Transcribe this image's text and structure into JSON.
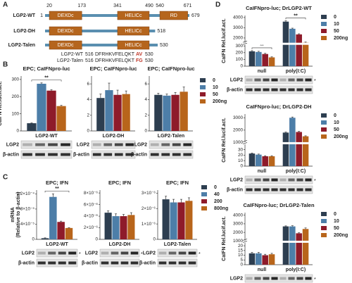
{
  "panels": [
    "A",
    "B",
    "C",
    "D"
  ],
  "domain_diagram": {
    "constructs": [
      {
        "name": "LGP2-WT",
        "start": 1,
        "end": 679,
        "domains": [
          {
            "label": "DEXDc",
            "from": 20,
            "to": 173
          },
          {
            "label": "HELICc",
            "from": 341,
            "to": 490
          },
          {
            "label": "RD",
            "from": 540,
            "to": 671
          }
        ]
      },
      {
        "name": "LGP2-DH",
        "end": 518,
        "domains": [
          {
            "label": "DEXDc",
            "from": 20,
            "to": 173
          },
          {
            "label": "HELICc",
            "from": 341,
            "to": 490
          }
        ]
      },
      {
        "name": "LGP2-Talen",
        "end": 530,
        "domains": [
          {
            "label": "DEXDc",
            "from": 20,
            "to": 173
          },
          {
            "label": "HELICc",
            "from": 341,
            "to": 490
          }
        ]
      }
    ],
    "sequences": [
      {
        "name": "LGP2-WT",
        "start": 516,
        "body": "DFRHKVFELQKT",
        "tail": "AV",
        "end": 530
      },
      {
        "name": "LGP2-Talen",
        "start": 516,
        "body": "DFRHKVFELQKT",
        "tail": "FG",
        "end": 530
      }
    ]
  },
  "chart_data": [
    {
      "type": "bar",
      "title": "EPC; CaIFNpro-luc",
      "y_label": [
        "CaIFN Rel.lucif.act."
      ],
      "categories": [
        "LGP2-WT"
      ],
      "ylim": [
        0,
        320
      ],
      "yticks": [
        0,
        100,
        200,
        300
      ],
      "series": [
        {
          "color": "#2d3e50",
          "values": [
            45
          ],
          "errors": [
            2
          ]
        },
        {
          "color": "#4d7ea8",
          "values": [
            275
          ],
          "errors": [
            5
          ]
        },
        {
          "color": "#8e1b2a",
          "values": [
            235
          ],
          "errors": [
            5
          ]
        },
        {
          "color": "#b8651b",
          "values": [
            145
          ],
          "errors": [
            4
          ]
        }
      ],
      "annotations": [
        "**"
      ],
      "blot_labels": [
        "LGP2",
        "β-actin"
      ]
    },
    {
      "type": "bar",
      "title": "EPC; CaIFNpro-luc",
      "categories": [
        "LGP2-DH"
      ],
      "ylim": [
        0,
        7
      ],
      "yticks": [
        0,
        2,
        4,
        6
      ],
      "series": [
        {
          "color": "#2d3e50",
          "values": [
            4.2
          ],
          "errors": [
            0.5
          ]
        },
        {
          "color": "#4d7ea8",
          "values": [
            5.2
          ],
          "errors": [
            0.9
          ]
        },
        {
          "color": "#8e1b2a",
          "values": [
            4.6
          ],
          "errors": [
            0.6
          ]
        },
        {
          "color": "#b8651b",
          "values": [
            4.7
          ],
          "errors": [
            0.4
          ]
        }
      ],
      "blot_labels": [
        "LGP2",
        "β-actin"
      ]
    },
    {
      "type": "bar",
      "title": "EPC; CaIFNpro-luc",
      "categories": [
        "LGP2-Talen"
      ],
      "ylim": [
        0,
        7
      ],
      "yticks": [
        0,
        2,
        4,
        6
      ],
      "series": [
        {
          "name": "0",
          "color": "#2d3e50",
          "values": [
            4.6
          ],
          "errors": [
            0.2
          ]
        },
        {
          "name": "10",
          "color": "#4d7ea8",
          "values": [
            4.5
          ],
          "errors": [
            0.2
          ]
        },
        {
          "name": "50",
          "color": "#8e1b2a",
          "values": [
            4.6
          ],
          "errors": [
            0.3
          ]
        },
        {
          "name": "200ng",
          "color": "#b8651b",
          "values": [
            5.0
          ],
          "errors": [
            0.6
          ]
        }
      ],
      "blot_labels": [
        "LGP2",
        "β-actin"
      ]
    },
    {
      "type": "bar",
      "title": "EPC; IFN",
      "y_label": [
        "mRNA",
        "(Relative to β-actin)"
      ],
      "categories": [
        "LGP2-WT"
      ],
      "ylim": [
        0,
        0.00013
      ],
      "yticks": [
        0,
        {
          "value": 4e-05,
          "label": "4×10⁻⁵"
        },
        {
          "value": 8e-05,
          "label": "8×10⁻⁵"
        },
        {
          "value": 0.00012,
          "label": "1.2×10⁻⁴"
        }
      ],
      "series": [
        {
          "color": "#2d3e50",
          "values": [
            3e-06
          ],
          "errors": [
            1e-06
          ]
        },
        {
          "color": "#4d7ea8",
          "values": [
            0.000112
          ],
          "errors": [
            8e-06
          ]
        },
        {
          "color": "#8e1b2a",
          "values": [
            4.6e-05
          ],
          "errors": [
            2e-06
          ]
        },
        {
          "color": "#b8651b",
          "values": [
            3e-05
          ],
          "errors": [
            1e-06
          ]
        }
      ],
      "annotations": [
        "**"
      ],
      "blot_labels": [
        "LGP2",
        "β-actin"
      ],
      "blot_star": "*"
    },
    {
      "type": "bar",
      "title": "EPC; IFN",
      "categories": [
        "LGP2-DH"
      ],
      "ylim": [
        0,
        8.5e-06
      ],
      "yticks": [
        0,
        {
          "value": 2e-06,
          "label": "2×10⁻⁶"
        },
        {
          "value": 4e-06,
          "label": "4×10⁻⁶"
        },
        {
          "value": 6e-06,
          "label": "6×10⁻⁶"
        },
        {
          "value": 8e-06,
          "label": "8×10⁻⁶"
        }
      ],
      "series": [
        {
          "color": "#2d3e50",
          "values": [
            4.6e-06
          ],
          "errors": [
            3e-07
          ]
        },
        {
          "color": "#4d7ea8",
          "values": [
            4e-06
          ],
          "errors": [
            4e-07
          ]
        },
        {
          "color": "#8e1b2a",
          "values": [
            4e-06
          ],
          "errors": [
            3e-07
          ]
        },
        {
          "color": "#b8651b",
          "values": [
            4.2e-06
          ],
          "errors": [
            4e-07
          ]
        }
      ],
      "blot_labels": [
        "LGP2",
        "β-actin"
      ],
      "blot_star": "*"
    },
    {
      "type": "bar",
      "title": "EPC; IFN",
      "categories": [
        "LGP2-Talen"
      ],
      "ylim": [
        0,
        3.2e-06
      ],
      "yticks": [
        0,
        {
          "value": 1e-06,
          "label": "1×10⁻⁶"
        },
        {
          "value": 2e-06,
          "label": "2×10⁻⁶"
        },
        {
          "value": 3e-06,
          "label": "3×10⁻⁶"
        }
      ],
      "series": [
        {
          "name": "0",
          "color": "#2d3e50",
          "values": [
            2.6e-06
          ],
          "errors": [
            2e-07
          ]
        },
        {
          "name": "40",
          "color": "#4d7ea8",
          "values": [
            2.4e-06
          ],
          "errors": [
            2e-07
          ]
        },
        {
          "name": "200",
          "color": "#8e1b2a",
          "values": [
            2.4e-06
          ],
          "errors": [
            2e-07
          ]
        },
        {
          "name": "800ng",
          "color": "#b8651b",
          "values": [
            2.5e-06
          ],
          "errors": [
            2e-07
          ]
        }
      ],
      "blot_labels": [
        "LGP2",
        "β-actin"
      ],
      "blot_star": "*"
    },
    {
      "type": "bar",
      "title": "CaIFNpro-luc; DrLGP2-WT",
      "y_label": [
        "CaIFN Rel.lucif.act."
      ],
      "categories": [
        "null",
        "poly(I:C)"
      ],
      "ylim": [
        0,
        4200
      ],
      "ybreak": [
        300,
        1500
      ],
      "yticks": [
        0,
        100,
        200,
        300,
        2000,
        3000,
        4000
      ],
      "series": [
        {
          "name": "0",
          "color": "#2d3e50",
          "values": [
            220,
            3600
          ],
          "errors": [
            10,
            80
          ]
        },
        {
          "name": "10",
          "color": "#4d7ea8",
          "values": [
            210,
            2900
          ],
          "errors": [
            10,
            60
          ]
        },
        {
          "name": "50",
          "color": "#8e1b2a",
          "values": [
            180,
            2350
          ],
          "errors": [
            10,
            60
          ]
        },
        {
          "name": "200ng",
          "color": "#b8651b",
          "values": [
            130,
            1550
          ],
          "errors": [
            8,
            50
          ]
        }
      ],
      "annotations": [
        "**",
        "**"
      ],
      "blot_labels": [
        "LGP2",
        "β-actin"
      ],
      "blot_star": "*"
    },
    {
      "type": "bar",
      "title": "CaIFNpro-luc; DrLGP2-DH",
      "y_label": [
        "CaIFN Rel.lucif.act."
      ],
      "categories": [
        "null",
        "poly(I:C)"
      ],
      "ylim": [
        0,
        3300
      ],
      "ybreak": [
        38,
        1000
      ],
      "yticks": [
        0,
        10,
        20,
        30,
        1000,
        2000,
        3000
      ],
      "series": [
        {
          "name": "0",
          "color": "#2d3e50",
          "values": [
            23,
            1800
          ],
          "errors": [
            1,
            40
          ]
        },
        {
          "name": "10",
          "color": "#4d7ea8",
          "values": [
            21,
            3000
          ],
          "errors": [
            1,
            60
          ]
        },
        {
          "name": "50",
          "color": "#8e1b2a",
          "values": [
            18,
            1850
          ],
          "errors": [
            1,
            50
          ]
        },
        {
          "name": "200ng",
          "color": "#b8651b",
          "values": [
            18,
            1500
          ],
          "errors": [
            1,
            40
          ]
        }
      ],
      "blot_labels": [
        "LGP2",
        "β-actin"
      ],
      "blot_star": "*"
    },
    {
      "type": "bar",
      "title": "CaIFNpro-luc; DrLGP2-Talen",
      "y_label": [
        "CaIFN Rel.lucif.act."
      ],
      "categories": [
        "null",
        "poly(I:C)"
      ],
      "ylim": [
        0,
        4300
      ],
      "ybreak": [
        22,
        1000
      ],
      "yticks": [
        0,
        5,
        10,
        15,
        20,
        1000,
        2000,
        3000,
        4000
      ],
      "series": [
        {
          "name": "0",
          "color": "#2d3e50",
          "values": [
            12,
            2700
          ],
          "errors": [
            1,
            60
          ]
        },
        {
          "name": "10",
          "color": "#4d7ea8",
          "values": [
            12,
            2700
          ],
          "errors": [
            1,
            80
          ]
        },
        {
          "name": "50",
          "color": "#8e1b2a",
          "values": [
            10,
            1900
          ],
          "errors": [
            1,
            60
          ]
        },
        {
          "name": "200ng",
          "color": "#b8651b",
          "values": [
            11,
            2400
          ],
          "errors": [
            1,
            120
          ]
        }
      ],
      "blot_labels": [
        "LGP2",
        "β-actin"
      ],
      "blot_star": "*"
    }
  ]
}
